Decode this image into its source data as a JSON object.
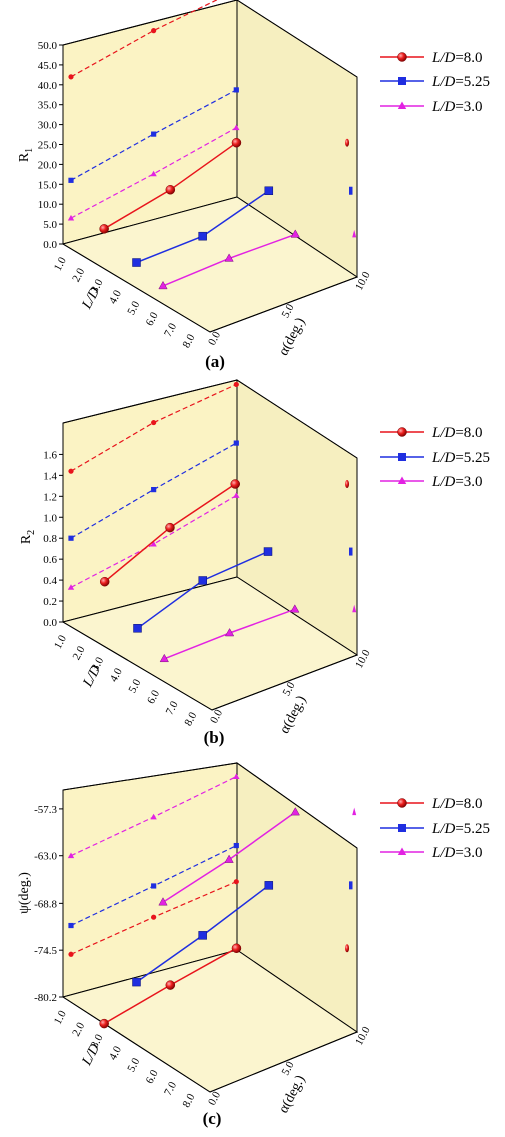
{
  "figure": {
    "captions": [
      "(a)",
      "(b)",
      "(c)"
    ]
  },
  "legend": [
    {
      "label": "L/D=8.0",
      "color": "#e8141c",
      "marker": "sphere"
    },
    {
      "label": "L/D=5.25",
      "color": "#1f2ee0",
      "marker": "square"
    },
    {
      "label": "L/D=3.0",
      "color": "#e222e2",
      "marker": "triangle"
    }
  ],
  "chart_data": [
    {
      "type": "line",
      "caption": "(a)",
      "zlabel": "R",
      "zlabel_sub": "1",
      "xlabel": "α(deg.)",
      "ylabel": "L/D",
      "x_ticks": [
        "0.0",
        "5.0",
        "10.0"
      ],
      "y_ticks": [
        "1.0",
        "2.0",
        "3.0",
        "4.0",
        "5.0",
        "6.0",
        "7.0",
        "8.0"
      ],
      "z_ticks": [
        "0.0",
        "5.0",
        "10.0",
        "15.0",
        "20.0",
        "25.0",
        "30.0",
        "35.0",
        "40.0",
        "45.0",
        "50.0"
      ],
      "x": [
        0.0,
        5.0,
        10.0
      ],
      "series": [
        {
          "name": "L/D=8.0",
          "values": [
            10.0,
            13.6,
            19.2
          ]
        },
        {
          "name": "L/D=5.25",
          "values": [
            6.4,
            6.8,
            12.0
          ]
        },
        {
          "name": "L/D=3.0",
          "values": [
            4.5,
            5.2,
            5.0
          ]
        }
      ],
      "projection_values": [
        {
          "name": "L/D=8.0",
          "values": [
            42.0,
            48.0,
            52.5
          ]
        },
        {
          "name": "L/D=5.25",
          "values": [
            16.0,
            22.0,
            27.5
          ]
        },
        {
          "name": "L/D=3.0",
          "values": [
            6.5,
            12.0,
            18.0
          ]
        }
      ]
    },
    {
      "type": "line",
      "caption": "(b)",
      "zlabel": "R",
      "zlabel_sub": "2",
      "xlabel": "α(deg.)",
      "ylabel": "L/D",
      "x_ticks": [
        "0.0",
        "5.0",
        "10.0"
      ],
      "y_ticks": [
        "1.0",
        "2.0",
        "3.0",
        "4.0",
        "5.0",
        "6.0",
        "7.0",
        "8.0"
      ],
      "z_ticks": [
        "0.0",
        "0.2",
        "0.4",
        "0.6",
        "0.8",
        "1.0",
        "1.2",
        "1.4",
        "1.6"
      ],
      "x": [
        0.0,
        5.0,
        10.0
      ],
      "series": [
        {
          "name": "L/D=8.0",
          "values": [
            0.62,
            0.9,
            1.08
          ]
        },
        {
          "name": "L/D=5.25",
          "values": [
            0.36,
            0.58,
            0.62
          ]
        },
        {
          "name": "L/D=3.0",
          "values": [
            0.22,
            0.23,
            0.22
          ]
        }
      ],
      "projection_values": [
        {
          "name": "L/D=8.0",
          "values": [
            1.44,
            1.7,
            1.86
          ]
        },
        {
          "name": "L/D=5.25",
          "values": [
            0.8,
            1.06,
            1.3
          ]
        },
        {
          "name": "L/D=3.0",
          "values": [
            0.33,
            0.54,
            0.8
          ]
        }
      ]
    },
    {
      "type": "line",
      "caption": "(c)",
      "zlabel": "ψ(deg.)",
      "xlabel": "α(deg.)",
      "ylabel": "L/D",
      "x_ticks": [
        "0.0",
        "5.0",
        "10.0"
      ],
      "y_ticks": [
        "1.0",
        "2.0",
        "3.0",
        "4.0",
        "5.0",
        "6.0",
        "7.0",
        "8.0"
      ],
      "z_ticks": [
        "-80.2",
        "-74.5",
        "-68.8",
        "-63.0",
        "-57.3"
      ],
      "x": [
        0.0,
        5.0,
        10.0
      ],
      "series": [
        {
          "name": "L/D=8.0",
          "values": [
            -80.2,
            -78.8,
            -77.6
          ]
        },
        {
          "name": "L/D=5.25",
          "values": [
            -72.6,
            -70.2,
            -67.4
          ]
        },
        {
          "name": "L/D=3.0",
          "values": [
            -60.8,
            -58.9,
            -56.4
          ]
        }
      ],
      "projection_values": [
        {
          "name": "L/D=8.0",
          "values": [
            -75.0,
            -73.2,
            -71.6
          ]
        },
        {
          "name": "L/D=5.25",
          "values": [
            -71.5,
            -69.4,
            -67.2
          ]
        },
        {
          "name": "L/D=3.0",
          "values": [
            -63.0,
            -61.0,
            -58.8
          ]
        }
      ]
    }
  ]
}
